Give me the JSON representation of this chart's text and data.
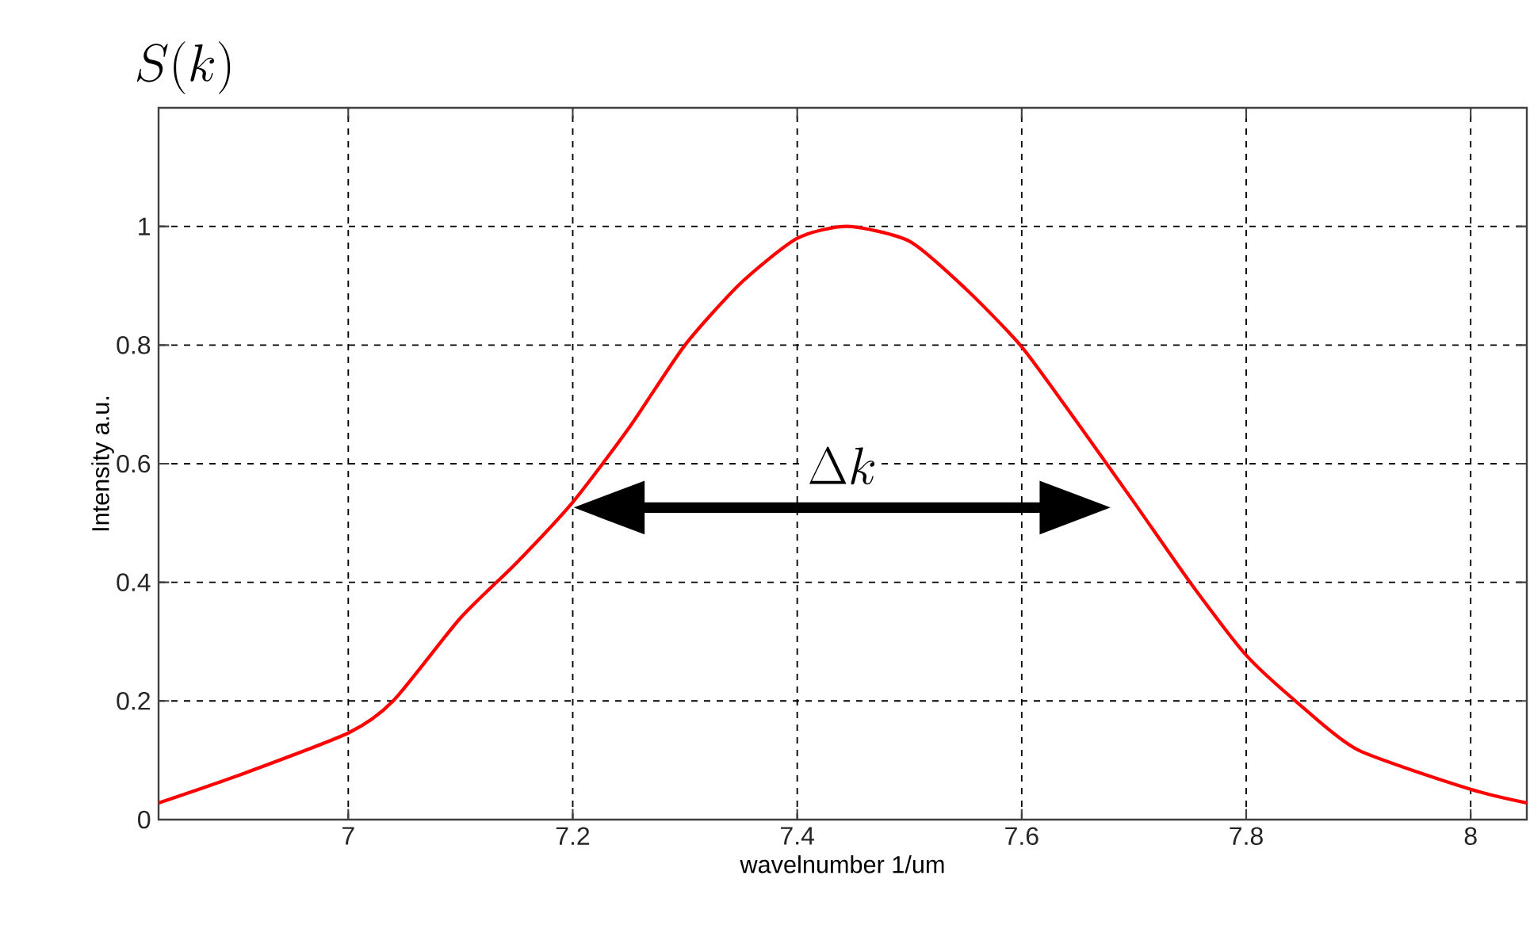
{
  "chart_data": {
    "type": "line",
    "title": "S(k)",
    "xlabel": "wavelnumber 1/um",
    "ylabel": "Intensity a.u.",
    "x": [
      6.831,
      6.9,
      7.0,
      7.04,
      7.1,
      7.15,
      7.2,
      7.25,
      7.3,
      7.35,
      7.4,
      7.445,
      7.5,
      7.55,
      7.6,
      7.65,
      7.7,
      7.75,
      7.8,
      7.85,
      7.9,
      8.0,
      8.05
    ],
    "series": [
      {
        "color": "#ff0000",
        "values": [
          0.028,
          0.073,
          0.146,
          0.2,
          0.34,
          0.433,
          0.535,
          0.66,
          0.8,
          0.905,
          0.98,
          1.0,
          0.975,
          0.895,
          0.797,
          0.668,
          0.535,
          0.4,
          0.277,
          0.19,
          0.117,
          0.051,
          0.028
        ]
      }
    ],
    "xlim": [
      6.831,
      8.05
    ],
    "ylim": [
      0,
      1.2
    ],
    "xticks": [
      7,
      7.2,
      7.4,
      7.6,
      7.8,
      8
    ],
    "yticks": [
      0,
      0.2,
      0.4,
      0.6,
      0.8,
      1
    ],
    "grid": true,
    "marker": "none",
    "line_style": "solid",
    "annotations": [
      "\\Delta k"
    ]
  }
}
